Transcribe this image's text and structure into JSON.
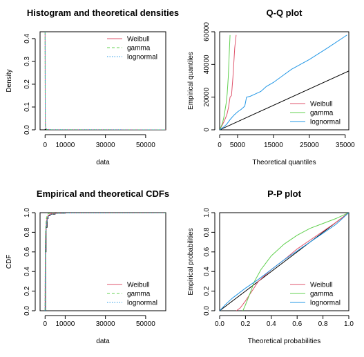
{
  "chart_data": [
    {
      "id": "hist",
      "type": "histogram",
      "title": "Histogram and theoretical densities",
      "xlabel": "data",
      "ylabel": "Density",
      "xlim": [
        -2500,
        60000
      ],
      "ylim": [
        0,
        0.43
      ],
      "xticks": [
        0,
        10000,
        30000,
        50000
      ],
      "xtick_labels": [
        "0",
        "10000",
        "30000",
        "50000"
      ],
      "yticks": [
        0,
        0.1,
        0.2,
        0.3,
        0.4
      ],
      "ytick_labels": [
        "0.0",
        "0.1",
        "0.2",
        "0.3",
        "0.4"
      ],
      "bars": [
        {
          "x0": 0,
          "x1": 500,
          "density": 0.0019
        },
        {
          "x0": 500,
          "x1": 59500,
          "density": 0.0
        }
      ],
      "series": [
        {
          "name": "Weibull",
          "color": "#DF536B",
          "dash": "",
          "x": [
            0,
            100,
            300,
            800,
            3000,
            60000
          ],
          "y": [
            0.43,
            0.03,
            0.006,
            0.002,
            0.0005,
            0
          ]
        },
        {
          "name": "gamma",
          "color": "#61D04F",
          "dash": "4,3",
          "x": [
            0,
            100,
            300,
            800,
            3000,
            60000
          ],
          "y": [
            0.43,
            0.02,
            0.005,
            0.002,
            0.0004,
            0
          ]
        },
        {
          "name": "lognormal",
          "color": "#2297E6",
          "dash": "1.5,2",
          "x": [
            0,
            100,
            300,
            800,
            3000,
            60000
          ],
          "y": [
            0.43,
            0.025,
            0.006,
            0.002,
            0.0005,
            0
          ]
        }
      ],
      "legend": {
        "position": "top-right",
        "entries": [
          "Weibull",
          "gamma",
          "lognormal"
        ]
      }
    },
    {
      "id": "qq",
      "type": "line",
      "title": "Q-Q plot",
      "xlabel": "Theoretical quantiles",
      "ylabel": "Empirical quantiles",
      "xlim": [
        0,
        36000
      ],
      "ylim": [
        0,
        60000
      ],
      "xticks": [
        0,
        5000,
        15000,
        25000,
        35000
      ],
      "xtick_labels": [
        "0",
        "5000",
        "15000",
        "25000",
        "35000"
      ],
      "yticks": [
        0,
        20000,
        40000,
        60000
      ],
      "ytick_labels": [
        "0",
        "20000",
        "40000",
        "60000"
      ],
      "reference_line": {
        "x": [
          -1000,
          37000
        ],
        "y": [
          -1000,
          37000
        ],
        "color": "#000000"
      },
      "series": [
        {
          "name": "Weibull",
          "color": "#DF536B",
          "x": [
            0,
            300,
            700,
            1200,
            1700,
            2100,
            2500,
            2900,
            3300,
            3700,
            4200,
            4600
          ],
          "y": [
            0,
            1200,
            2800,
            5000,
            7500,
            10000,
            14000,
            20000,
            21000,
            32000,
            50000,
            58000
          ]
        },
        {
          "name": "gamma",
          "color": "#61D04F",
          "x": [
            0,
            300,
            600,
            900,
            1200,
            1500,
            1800,
            2100,
            2400,
            2700,
            2900
          ],
          "y": [
            0,
            1500,
            3000,
            5000,
            8000,
            12000,
            16000,
            22000,
            32000,
            48000,
            58000
          ]
        },
        {
          "name": "lognormal",
          "color": "#2297E6",
          "x": [
            0,
            1000,
            2000,
            3000,
            4000,
            5000,
            6000,
            7000,
            7500,
            8500,
            10000,
            11500,
            13000,
            15000,
            17500,
            20000,
            25000,
            30000,
            35500
          ],
          "y": [
            0,
            1500,
            3500,
            6500,
            9000,
            11000,
            12500,
            14500,
            20000,
            20500,
            22000,
            23500,
            26500,
            29000,
            33000,
            37000,
            43000,
            50000,
            58000
          ]
        }
      ],
      "legend": {
        "position": "bottom-right",
        "entries": [
          "Weibull",
          "gamma",
          "lognormal"
        ]
      }
    },
    {
      "id": "cdf",
      "type": "line",
      "title": "Empirical and theoretical CDFs",
      "xlabel": "data",
      "ylabel": "CDF",
      "xlim": [
        -2500,
        60000
      ],
      "ylim": [
        0,
        1.0
      ],
      "xticks": [
        0,
        10000,
        30000,
        50000
      ],
      "xtick_labels": [
        "0",
        "10000",
        "30000",
        "50000"
      ],
      "yticks": [
        0,
        0.2,
        0.4,
        0.6,
        0.8,
        1.0
      ],
      "ytick_labels": [
        "0.0",
        "0.2",
        "0.4",
        "0.6",
        "0.8",
        "1.0"
      ],
      "empirical": {
        "color": "#000000",
        "x": [
          0,
          200,
          500,
          1000,
          1500,
          2500,
          5000,
          10000,
          60000
        ],
        "y": [
          0,
          0.6,
          0.85,
          0.94,
          0.97,
          0.985,
          0.995,
          0.999,
          1.0
        ]
      },
      "series": [
        {
          "name": "Weibull",
          "color": "#DF536B",
          "dash": "",
          "x": [
            0,
            100,
            300,
            700,
            1500,
            3000,
            8000,
            60000
          ],
          "y": [
            0,
            0.55,
            0.8,
            0.92,
            0.97,
            0.99,
            0.998,
            1.0
          ]
        },
        {
          "name": "gamma",
          "color": "#61D04F",
          "dash": "4,3",
          "x": [
            0,
            100,
            300,
            700,
            1500,
            3000,
            8000,
            60000
          ],
          "y": [
            0,
            0.6,
            0.85,
            0.95,
            0.99,
            0.998,
            1.0,
            1.0
          ]
        },
        {
          "name": "lognormal",
          "color": "#2297E6",
          "dash": "1.5,2",
          "x": [
            0,
            100,
            300,
            700,
            1500,
            3000,
            8000,
            60000
          ],
          "y": [
            0,
            0.5,
            0.78,
            0.9,
            0.96,
            0.985,
            0.996,
            1.0
          ]
        }
      ],
      "legend": {
        "position": "bottom-right",
        "entries": [
          "Weibull",
          "gamma",
          "lognormal"
        ]
      }
    },
    {
      "id": "pp",
      "type": "line",
      "title": "P-P plot",
      "xlabel": "Theoretical probabilities",
      "ylabel": "Empirical probabilities",
      "xlim": [
        0,
        1.0
      ],
      "ylim": [
        0,
        1.0
      ],
      "xticks": [
        0,
        0.2,
        0.4,
        0.6,
        0.8,
        1.0
      ],
      "xtick_labels": [
        "0.0",
        "0.2",
        "0.4",
        "0.6",
        "0.8",
        "1.0"
      ],
      "yticks": [
        0,
        0.2,
        0.4,
        0.6,
        0.8,
        1.0
      ],
      "ytick_labels": [
        "0.0",
        "0.2",
        "0.4",
        "0.6",
        "0.8",
        "1.0"
      ],
      "reference_line": {
        "x": [
          0,
          1.0
        ],
        "y": [
          0,
          1.0
        ],
        "color": "#000000"
      },
      "series": [
        {
          "name": "Weibull",
          "color": "#DF536B",
          "x": [
            0.13,
            0.16,
            0.2,
            0.25,
            0.3,
            0.4,
            0.5,
            0.6,
            0.7,
            0.8,
            0.9,
            1.0
          ],
          "y": [
            0.0,
            0.03,
            0.1,
            0.2,
            0.3,
            0.42,
            0.52,
            0.63,
            0.72,
            0.81,
            0.9,
            1.0
          ]
        },
        {
          "name": "gamma",
          "color": "#61D04F",
          "x": [
            0.18,
            0.2,
            0.23,
            0.27,
            0.32,
            0.4,
            0.5,
            0.6,
            0.7,
            0.8,
            0.9,
            1.0
          ],
          "y": [
            0.0,
            0.06,
            0.16,
            0.3,
            0.42,
            0.56,
            0.68,
            0.77,
            0.84,
            0.89,
            0.94,
            1.0
          ]
        },
        {
          "name": "lognormal",
          "color": "#2297E6",
          "x": [
            0.0,
            0.05,
            0.1,
            0.15,
            0.2,
            0.3,
            0.4,
            0.5,
            0.6,
            0.7,
            0.8,
            0.9,
            1.0
          ],
          "y": [
            0.0,
            0.07,
            0.13,
            0.18,
            0.23,
            0.32,
            0.42,
            0.52,
            0.61,
            0.7,
            0.79,
            0.88,
            1.0
          ]
        }
      ],
      "legend": {
        "position": "bottom-right",
        "entries": [
          "Weibull",
          "gamma",
          "lognormal"
        ]
      }
    }
  ]
}
